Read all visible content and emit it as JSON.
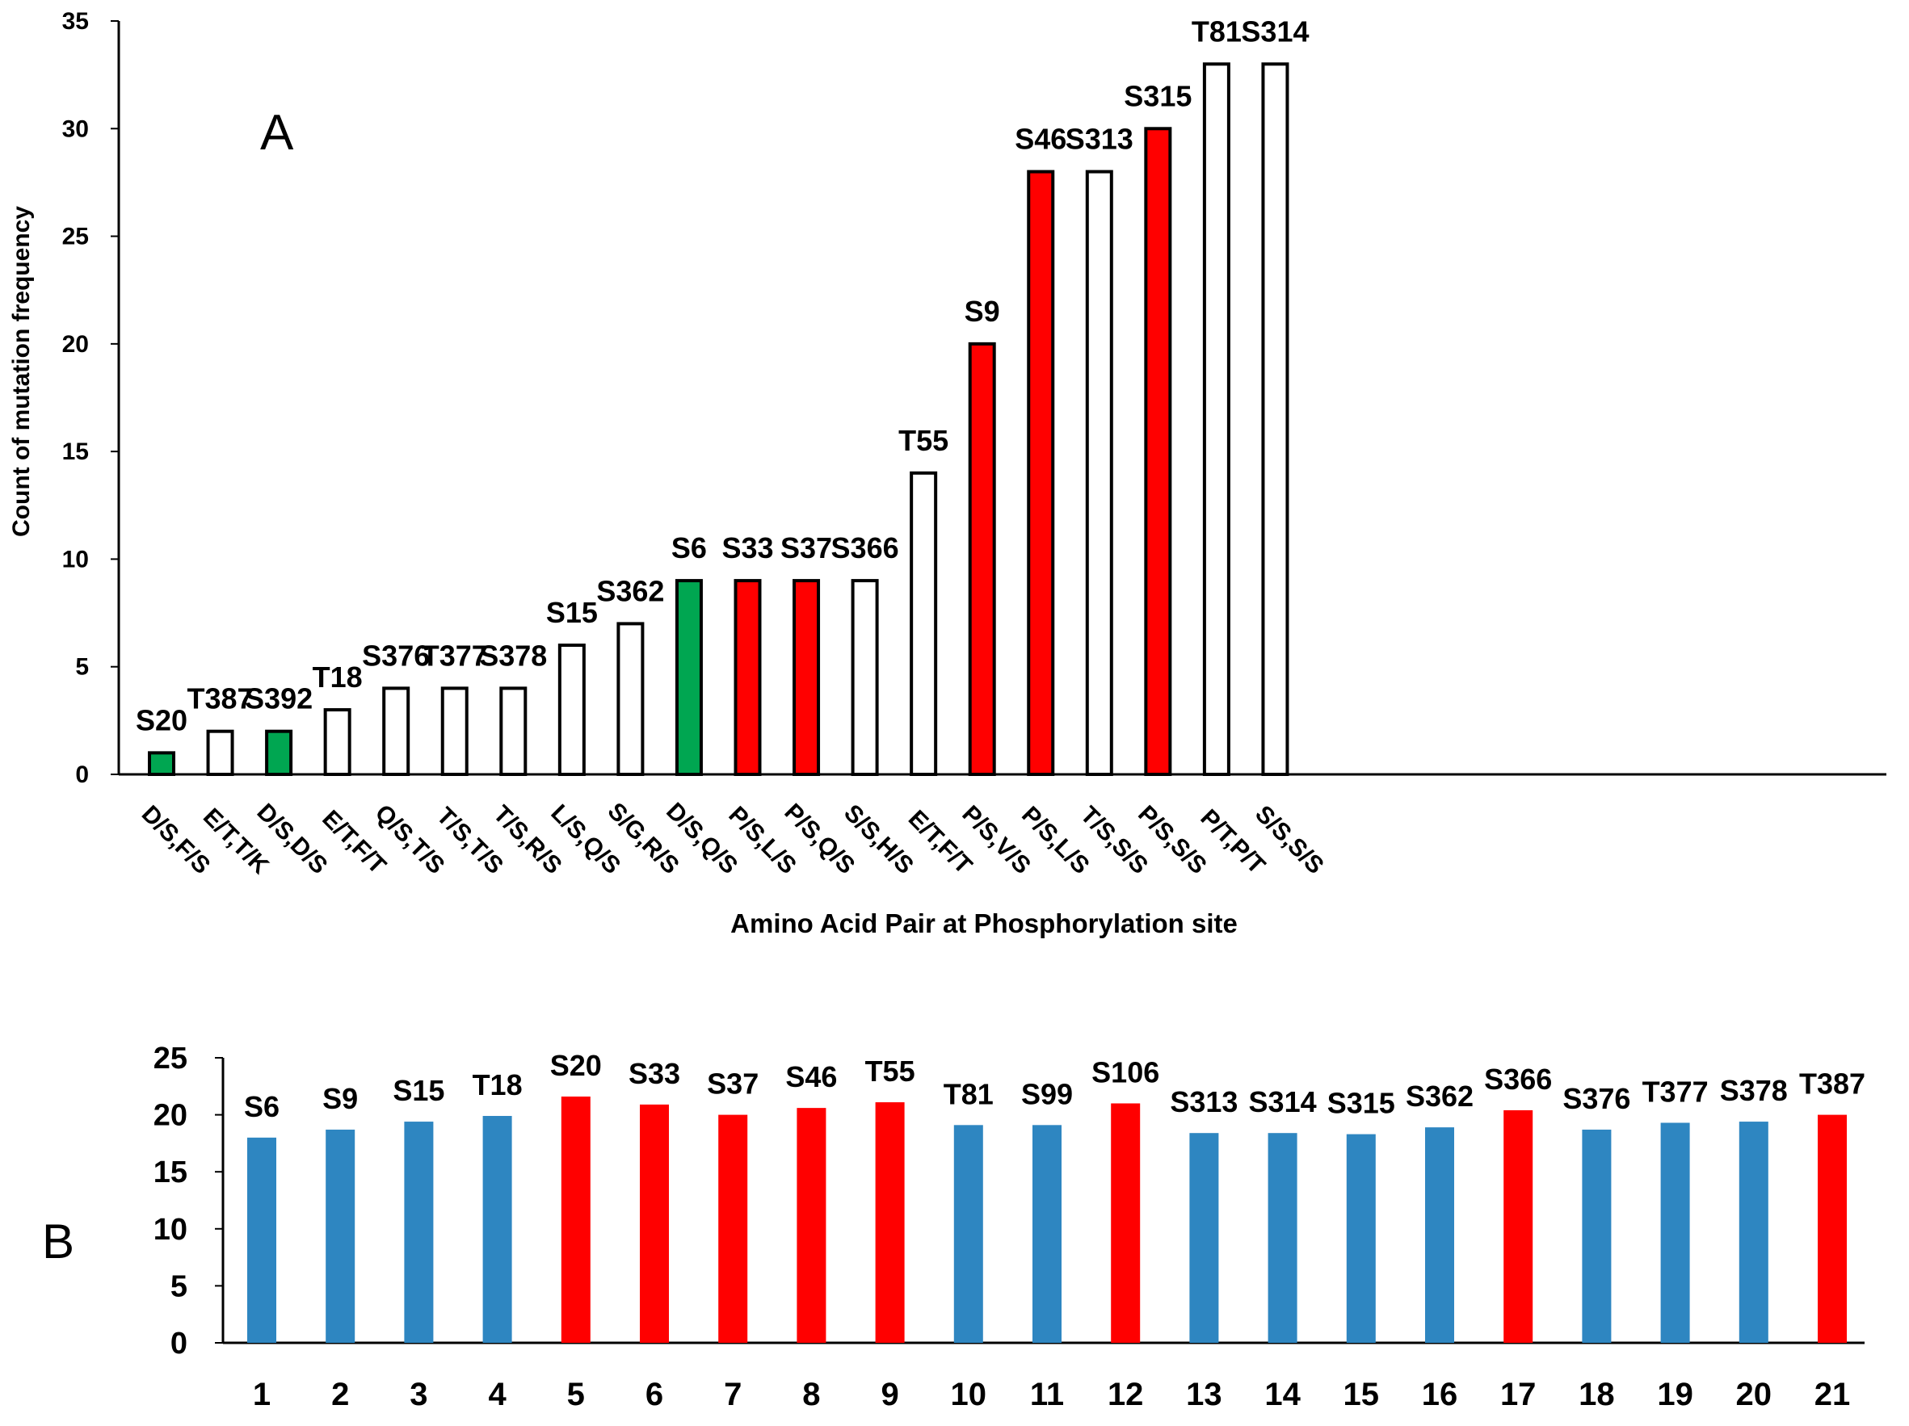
{
  "colors": {
    "green": "#00A651",
    "red": "#FF0000",
    "white": "#FFFFFF",
    "blue": "#2E86C1",
    "axis": "#000000",
    "bar_outline": "#000000"
  },
  "chart_data": [
    {
      "panel": "A",
      "type": "bar",
      "title": "",
      "panel_label": "A",
      "xlabel": "Amino Acid Pair at Phosphorylation site",
      "ylabel": "Count of mutation frequency",
      "ylim": [
        0,
        35
      ],
      "yticks": [
        "0",
        "5",
        "10",
        "15",
        "20",
        "25",
        "30",
        "35"
      ],
      "categories": [
        "D/S,F/S",
        "E/T,T/K",
        "D/S,D/S",
        "E/T,F/T",
        "Q/S,T/S",
        "T/S,T/S",
        "T/S,R/S",
        "L/S,Q/S",
        "S/G,R/S",
        "D/S,Q/S",
        "P/S,L/S",
        "P/S,Q/S",
        "S/S,H/S",
        "E/T,F/T",
        "P/S,V/S",
        "P/S,L/S",
        "T/S,S/S",
        "P/S,S/S",
        "P/T,P/T",
        "S/S,S/S"
      ],
      "site_labels": [
        "S20",
        "T387",
        "S392",
        "T18",
        "S376",
        "T377",
        "S378",
        "S15",
        "S362",
        "S6",
        "S33",
        "S37",
        "S366",
        "T55",
        "S9",
        "S46",
        "S313",
        "S315",
        "T81",
        "S314"
      ],
      "values": [
        1,
        2,
        2,
        3,
        4,
        4,
        4,
        6,
        7,
        9,
        9,
        9,
        9,
        14,
        20,
        28,
        28,
        30,
        33,
        33
      ],
      "bar_colors": [
        "green",
        "white",
        "green",
        "white",
        "white",
        "white",
        "white",
        "white",
        "white",
        "green",
        "red",
        "red",
        "white",
        "white",
        "red",
        "red",
        "white",
        "red",
        "white",
        "white"
      ]
    },
    {
      "panel": "B",
      "type": "bar",
      "title": "",
      "panel_label": "B",
      "xlabel": "",
      "ylabel": "",
      "ylim": [
        0,
        25
      ],
      "yticks": [
        "0",
        "5",
        "10",
        "15",
        "20",
        "25"
      ],
      "categories": [
        "1",
        "2",
        "3",
        "4",
        "5",
        "6",
        "7",
        "8",
        "9",
        "10",
        "11",
        "12",
        "13",
        "14",
        "15",
        "16",
        "17",
        "18",
        "19",
        "20",
        "21"
      ],
      "site_labels": [
        "S6",
        "S9",
        "S15",
        "T18",
        "S20",
        "S33",
        "S37",
        "S46",
        "T55",
        "T81",
        "S99",
        "S106",
        "S313",
        "S314",
        "S315",
        "S362",
        "S366",
        "S376",
        "T377",
        "S378",
        "T387"
      ],
      "values": [
        18.0,
        18.7,
        19.4,
        19.9,
        21.6,
        20.9,
        20.0,
        20.6,
        21.1,
        19.1,
        19.1,
        21.0,
        18.4,
        18.4,
        18.3,
        18.9,
        20.4,
        18.7,
        19.3,
        19.4,
        20.0
      ],
      "bar_colors": [
        "blue",
        "blue",
        "blue",
        "blue",
        "red",
        "red",
        "red",
        "red",
        "red",
        "blue",
        "blue",
        "red",
        "blue",
        "blue",
        "blue",
        "blue",
        "red",
        "blue",
        "blue",
        "blue",
        "red"
      ]
    }
  ]
}
